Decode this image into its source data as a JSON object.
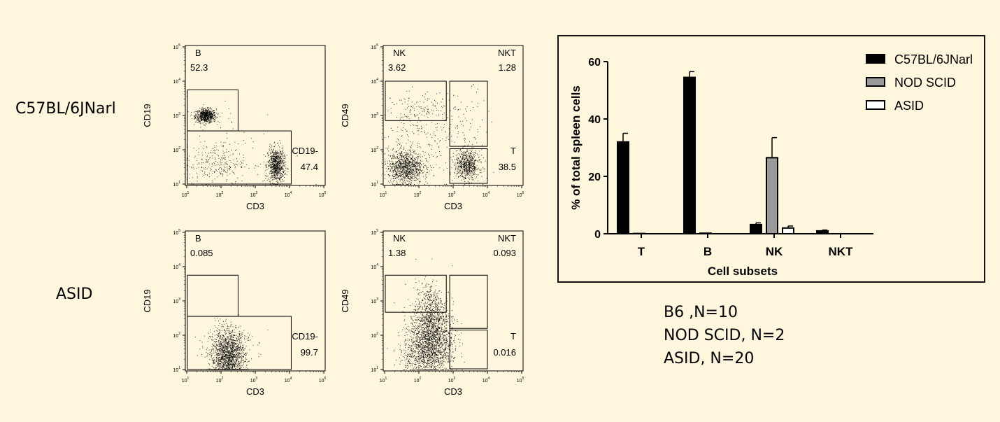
{
  "row_labels": [
    "C57BL/6JNarl",
    "ASID"
  ],
  "plots": [
    {
      "id": "b6-cd19-cd3",
      "ylabel": "CD19",
      "xlabel": "CD3",
      "tl_label": "B",
      "tl_value": "52.3",
      "tr_label": "",
      "tr_value": "",
      "br_label": "CD19-",
      "br_value": "47.4"
    },
    {
      "id": "b6-cd49-cd3",
      "ylabel": "CD49",
      "xlabel": "CD3",
      "tl_label": "NK",
      "tl_value": "3.62",
      "tr_label": "NKT",
      "tr_value": "1.28",
      "br_label": "T",
      "br_value": "38.5"
    },
    {
      "id": "asid-cd19-cd3",
      "ylabel": "CD19",
      "xlabel": "CD3",
      "tl_label": "B",
      "tl_value": "0.085",
      "tr_label": "",
      "tr_value": "",
      "br_label": "CD19-",
      "br_value": "99.7"
    },
    {
      "id": "asid-cd49-cd3",
      "ylabel": "CD49",
      "xlabel": "CD3",
      "tl_label": "NK",
      "tl_value": "1.38",
      "tr_label": "NKT",
      "tr_value": "0.093",
      "br_label": "T",
      "br_value": "0.016"
    }
  ],
  "tick_exponents": [
    "1",
    "2",
    "3",
    "4",
    "5"
  ],
  "chart_data": {
    "type": "bar",
    "title": "",
    "xlabel": "Cell subsets",
    "ylabel": "% of total spleen cells",
    "categories": [
      "T",
      "B",
      "NK",
      "NKT"
    ],
    "ylim": [
      0,
      60
    ],
    "yticks": [
      0,
      20,
      40,
      60
    ],
    "series": [
      {
        "name": "C57BL/6JNarl",
        "color": "#000000",
        "values": [
          32,
          54.5,
          3.2,
          1.0
        ],
        "errors": [
          3,
          2,
          0.6,
          0.3
        ]
      },
      {
        "name": "NOD SCID",
        "color": "#9a9a9a",
        "values": [
          0.1,
          0.2,
          26.5,
          0
        ],
        "errors": [
          0,
          0,
          7,
          0
        ]
      },
      {
        "name": "ASID",
        "color": "#ffffff",
        "values": [
          0,
          0,
          2,
          0
        ],
        "errors": [
          0,
          0,
          0.7,
          0
        ]
      }
    ],
    "legend_position": "top-right"
  },
  "footnotes": [
    "B6 ,N=10",
    "NOD SCID, N=2",
    "ASID, N=20"
  ]
}
